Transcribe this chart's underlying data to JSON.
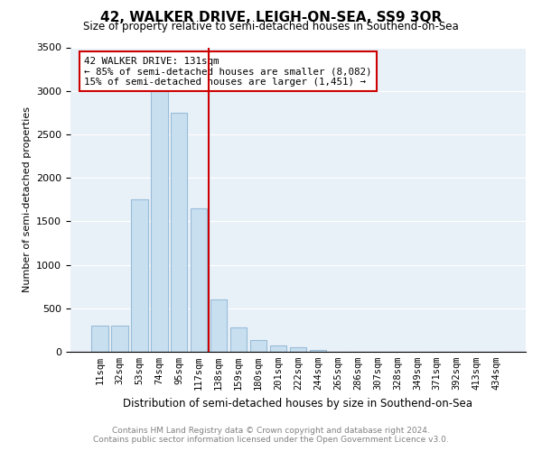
{
  "title": "42, WALKER DRIVE, LEIGH-ON-SEA, SS9 3QR",
  "subtitle": "Size of property relative to semi-detached houses in Southend-on-Sea",
  "xlabel": "Distribution of semi-detached houses by size in Southend-on-Sea",
  "ylabel": "Number of semi-detached properties",
  "footnote1": "Contains HM Land Registry data © Crown copyright and database right 2024.",
  "footnote2": "Contains public sector information licensed under the Open Government Licence v3.0.",
  "bar_color": "#c8dff0",
  "bar_edge_color": "#99bcd8",
  "bg_color": "#e8f0f8",
  "grid_color": "#ffffff",
  "marker_line_color": "#cc0000",
  "annotation_box_edge_color": "#cc0000",
  "categories": [
    "11sqm",
    "32sqm",
    "53sqm",
    "74sqm",
    "95sqm",
    "117sqm",
    "138sqm",
    "159sqm",
    "180sqm",
    "201sqm",
    "222sqm",
    "244sqm",
    "265sqm",
    "286sqm",
    "307sqm",
    "328sqm",
    "349sqm",
    "371sqm",
    "392sqm",
    "413sqm",
    "434sqm"
  ],
  "values": [
    300,
    300,
    1750,
    3000,
    2750,
    1650,
    600,
    275,
    130,
    75,
    50,
    25,
    5,
    3,
    2,
    1,
    0,
    0,
    0,
    0,
    0
  ],
  "ylim": [
    0,
    3500
  ],
  "yticks": [
    0,
    500,
    1000,
    1500,
    2000,
    2500,
    3000,
    3500
  ],
  "marker_index": 6,
  "annotation_line1": "42 WALKER DRIVE: 131sqm",
  "annotation_line2": "← 85% of semi-detached houses are smaller (8,082)",
  "annotation_line3": "15% of semi-detached houses are larger (1,451) →"
}
